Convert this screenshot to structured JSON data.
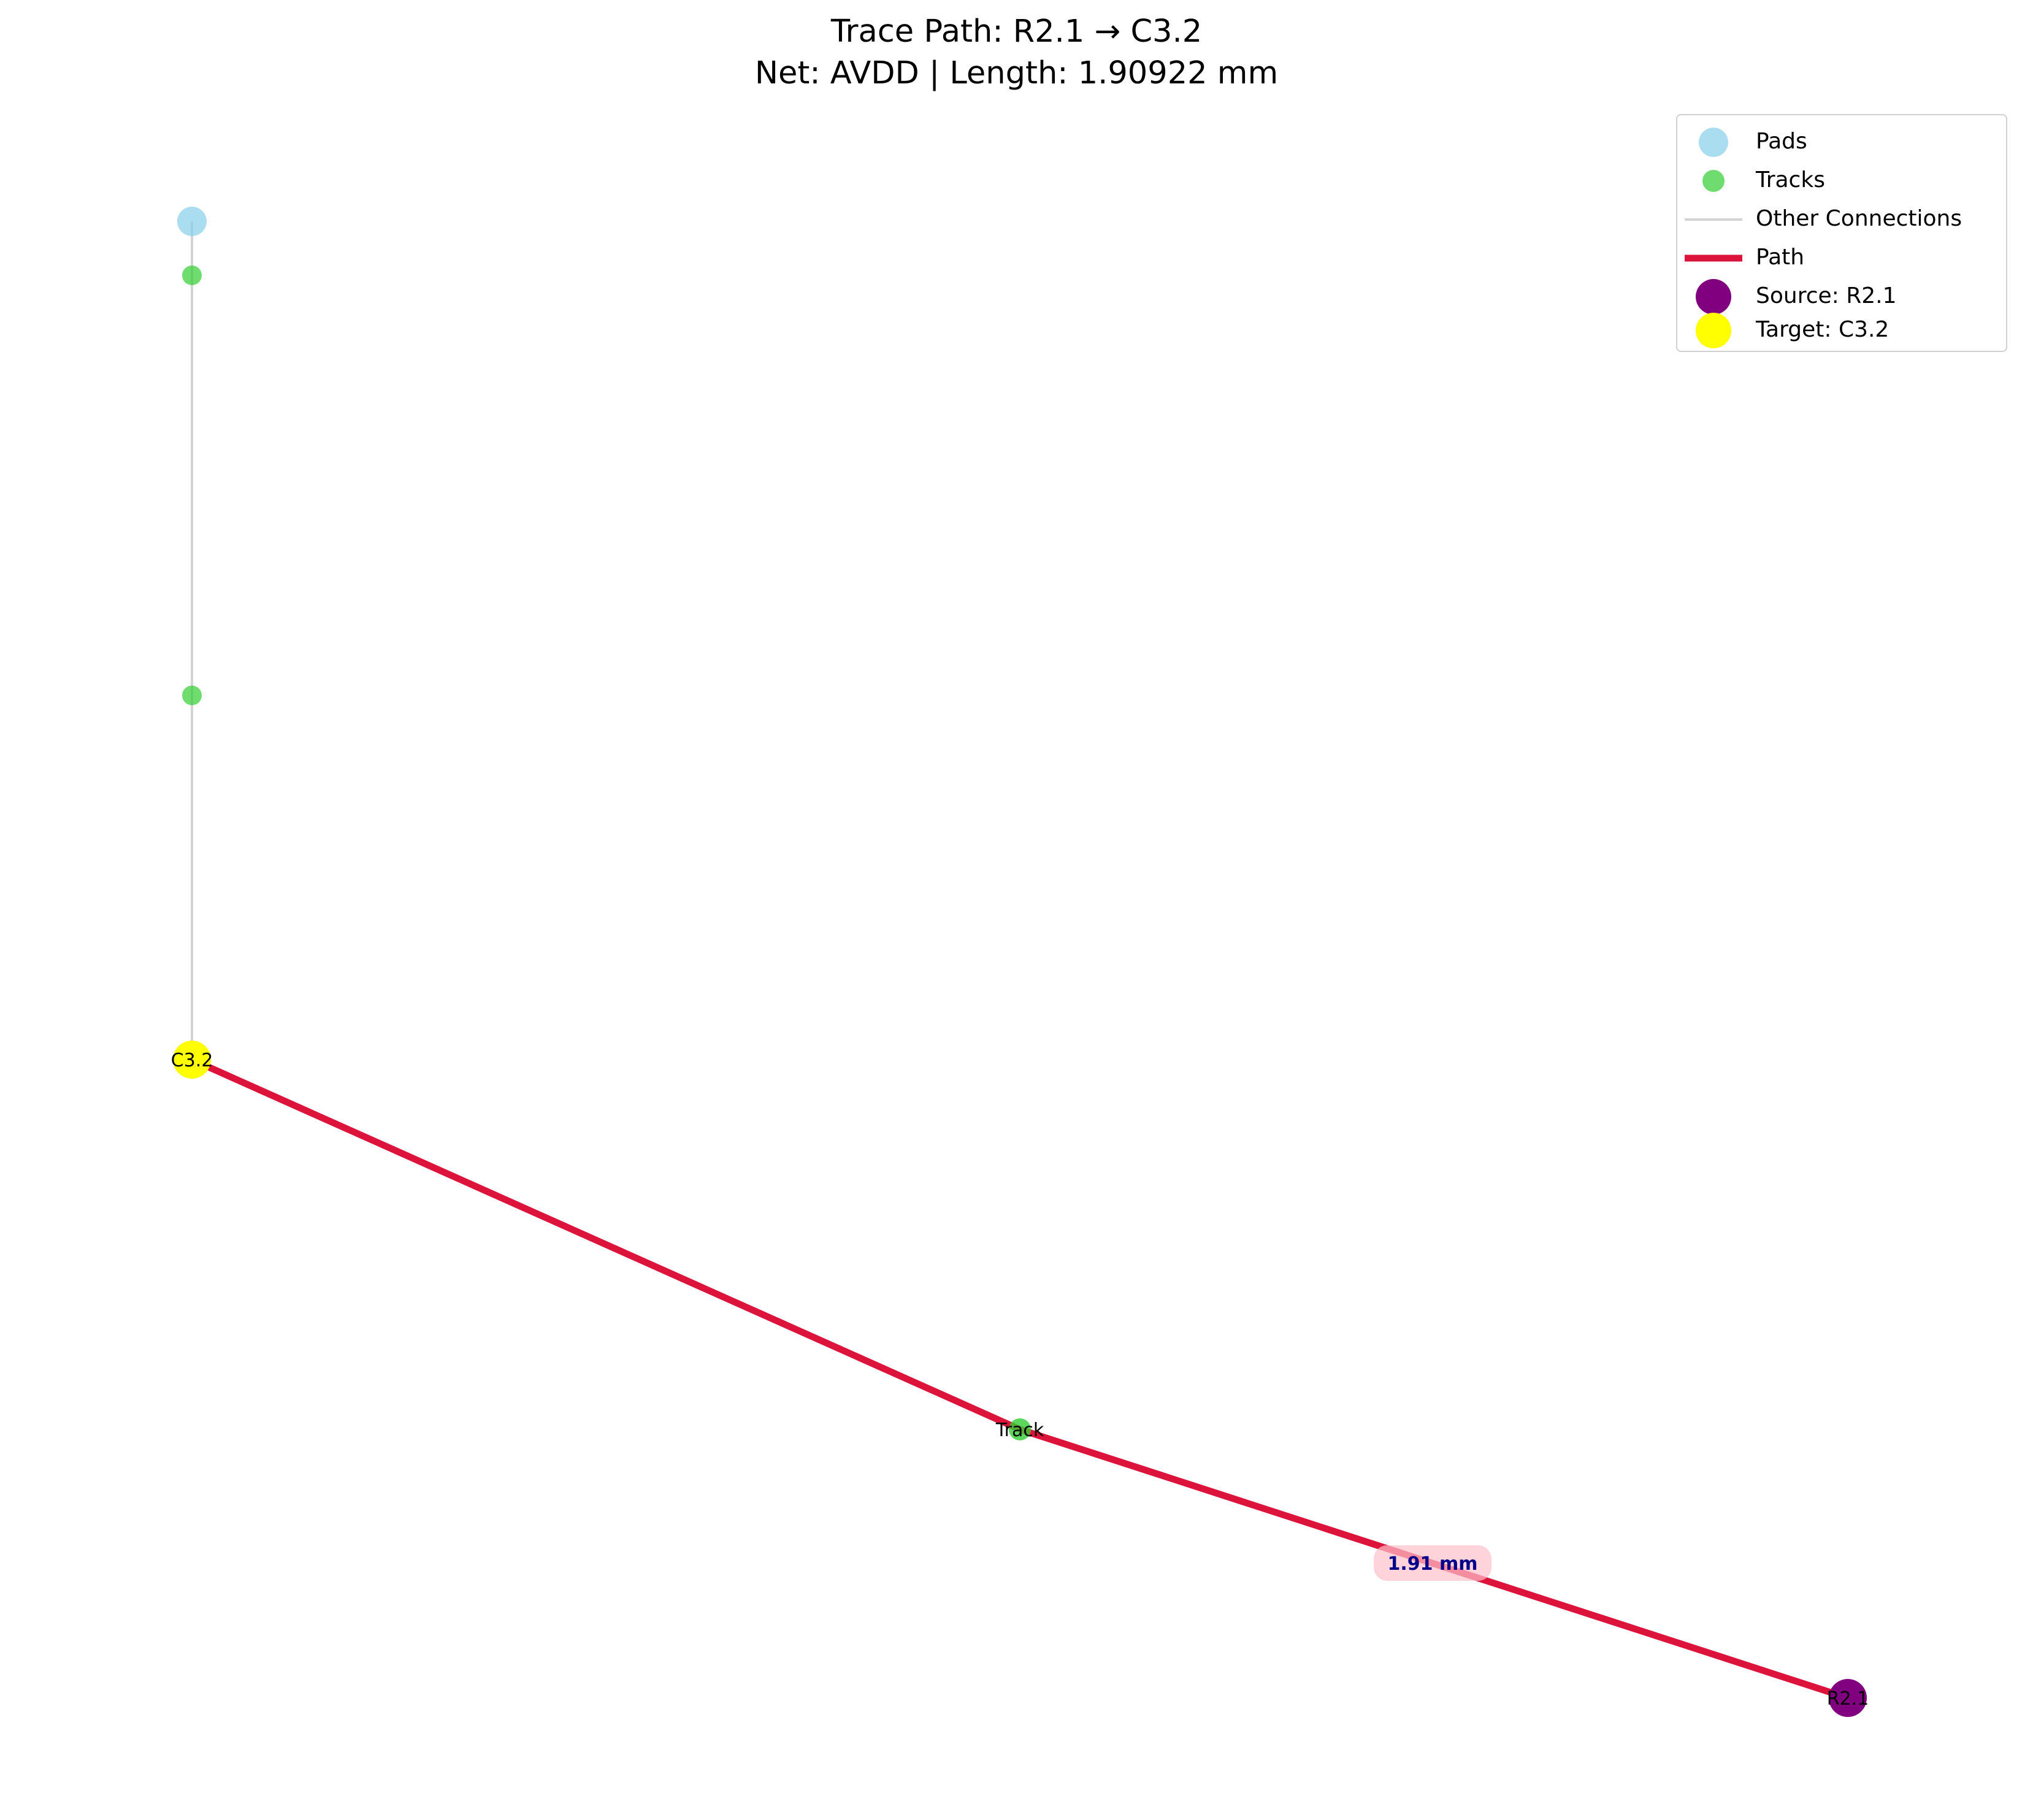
{
  "title": {
    "line1": "Trace Path: R2.1 → C3.2",
    "line2": "Net: AVDD | Length: 1.90922 mm"
  },
  "colors": {
    "pad": "#87ceeb",
    "track": "#32cd32",
    "other_connection": "#d3d3d3",
    "path": "#dc143c",
    "source": "#800080",
    "target": "#ffff00",
    "edge_label_text": "#00008b",
    "edge_label_box": "#ffc0cb"
  },
  "legend": {
    "placement": "top-right",
    "items": [
      {
        "label": "Pads",
        "kind": "marker",
        "color": "#87ceeb"
      },
      {
        "label": "Tracks",
        "kind": "marker-small",
        "color": "#32cd32"
      },
      {
        "label": "Other Connections",
        "kind": "line-thin",
        "color": "#d3d3d3"
      },
      {
        "label": "Path",
        "kind": "line-thick",
        "color": "#dc143c"
      },
      {
        "label": "Source: R2.1",
        "kind": "marker-large",
        "color": "#800080"
      },
      {
        "label": "Target: C3.2",
        "kind": "marker-large",
        "color": "#ffff00"
      }
    ]
  },
  "graph": {
    "node_labels": {
      "target": "C3.2",
      "track": "Track",
      "source": "R2.1"
    },
    "edge_label": "1.91 mm"
  }
}
